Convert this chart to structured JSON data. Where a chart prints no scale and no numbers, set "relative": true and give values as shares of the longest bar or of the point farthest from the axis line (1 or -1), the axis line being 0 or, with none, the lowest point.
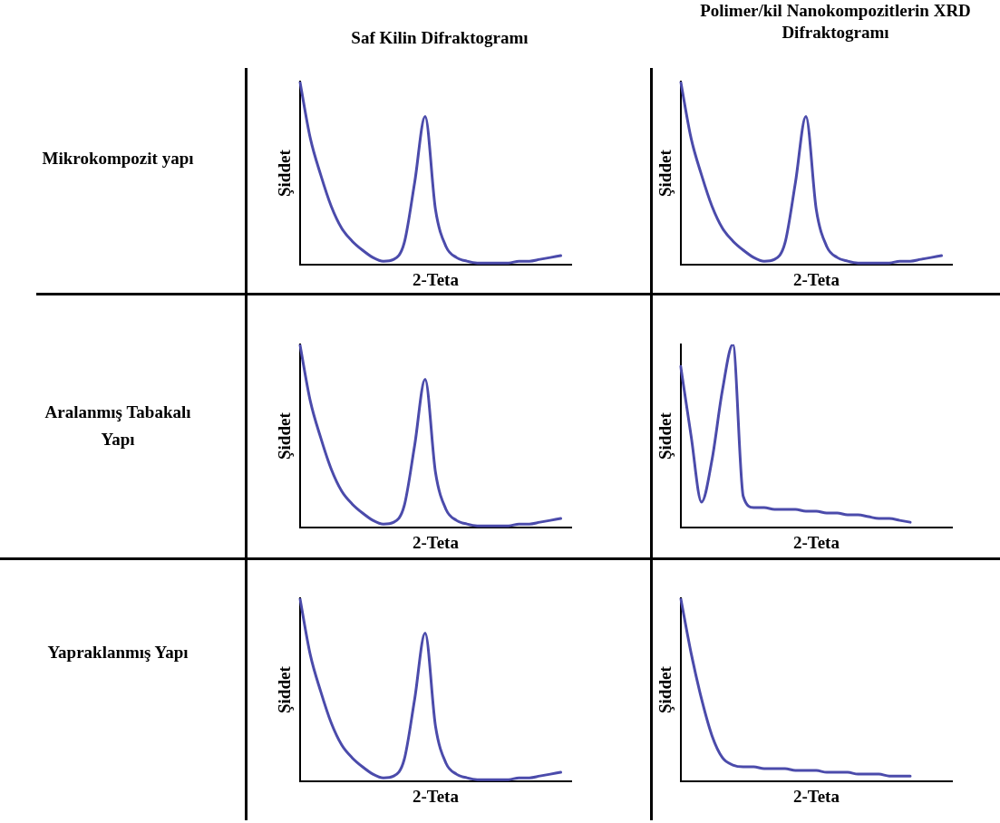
{
  "chart_data": [
    {
      "type": "line",
      "title": "Saf Kilin Difraktogramı",
      "annotations": [
        "Mikrokompozit yapı"
      ],
      "xlabel": "2-Teta",
      "ylabel": "Şiddet",
      "relative": true,
      "tick_labels": false,
      "legend": false,
      "categories": [
        null,
        null,
        null,
        null,
        null,
        null,
        null,
        null,
        null,
        null,
        null,
        null,
        null,
        null,
        null,
        null,
        null,
        null,
        null,
        null,
        null,
        null,
        null,
        null,
        null,
        null,
        null
      ],
      "series": [
        {
          "color": "#4b4bab",
          "values": [
            1.0,
            0.69,
            0.49,
            0.32,
            0.2,
            0.13,
            0.08,
            0.04,
            0.02,
            0.03,
            0.12,
            0.45,
            0.81,
            0.3,
            0.1,
            0.04,
            0.02,
            0.01,
            0.01,
            0.01,
            0.01,
            0.02,
            0.02,
            0.03,
            0.04,
            0.05,
            null
          ]
        }
      ]
    },
    {
      "type": "line",
      "title": "Polimer/kil Nanokompozitlerin XRD Difraktogramı",
      "xlabel": "2-Teta",
      "ylabel": "Şiddet",
      "relative": true,
      "tick_labels": false,
      "legend": false,
      "categories": [
        null,
        null,
        null,
        null,
        null,
        null,
        null,
        null,
        null,
        null,
        null,
        null,
        null,
        null,
        null,
        null,
        null,
        null,
        null,
        null,
        null,
        null,
        null,
        null,
        null,
        null,
        null
      ],
      "series": [
        {
          "color": "#4b4bab",
          "values": [
            1.0,
            0.69,
            0.49,
            0.32,
            0.2,
            0.13,
            0.08,
            0.04,
            0.02,
            0.03,
            0.12,
            0.45,
            0.81,
            0.3,
            0.1,
            0.04,
            0.02,
            0.01,
            0.01,
            0.01,
            0.01,
            0.02,
            0.02,
            0.03,
            0.04,
            0.05,
            null
          ]
        }
      ]
    },
    {
      "type": "line",
      "annotations": [
        "Aralanmış Tabakalı Yapı"
      ],
      "xlabel": "2-Teta",
      "ylabel": "Şiddet",
      "relative": true,
      "tick_labels": false,
      "legend": false,
      "categories": [
        null,
        null,
        null,
        null,
        null,
        null,
        null,
        null,
        null,
        null,
        null,
        null,
        null,
        null,
        null,
        null,
        null,
        null,
        null,
        null,
        null,
        null,
        null,
        null,
        null,
        null,
        null
      ],
      "series": [
        {
          "color": "#4b4bab",
          "values": [
            1.0,
            0.69,
            0.49,
            0.32,
            0.2,
            0.13,
            0.08,
            0.04,
            0.02,
            0.03,
            0.12,
            0.45,
            0.81,
            0.3,
            0.1,
            0.04,
            0.02,
            0.01,
            0.01,
            0.01,
            0.01,
            0.02,
            0.02,
            0.03,
            0.04,
            0.05,
            null
          ]
        }
      ]
    },
    {
      "type": "line",
      "xlabel": "2-Teta",
      "ylabel": "Şiddet",
      "relative": true,
      "tick_labels": false,
      "legend": false,
      "categories": [
        null,
        null,
        null,
        null,
        null,
        null,
        null,
        null,
        null,
        null,
        null,
        null,
        null,
        null,
        null,
        null,
        null,
        null,
        null,
        null,
        null,
        null,
        null,
        null,
        null,
        null,
        null
      ],
      "series": [
        {
          "color": "#4b4bab",
          "values": [
            0.88,
            0.5,
            0.14,
            0.37,
            0.75,
            1.0,
            0.17,
            0.11,
            0.11,
            0.1,
            0.1,
            0.1,
            0.09,
            0.09,
            0.08,
            0.08,
            0.07,
            0.07,
            0.06,
            0.05,
            0.05,
            0.04,
            0.03,
            null,
            null,
            null,
            null
          ]
        }
      ]
    },
    {
      "type": "line",
      "annotations": [
        "Yapraklanmış Yapı"
      ],
      "xlabel": "2-Teta",
      "ylabel": "Şiddet",
      "relative": true,
      "tick_labels": false,
      "legend": false,
      "categories": [
        null,
        null,
        null,
        null,
        null,
        null,
        null,
        null,
        null,
        null,
        null,
        null,
        null,
        null,
        null,
        null,
        null,
        null,
        null,
        null,
        null,
        null,
        null,
        null,
        null,
        null,
        null
      ],
      "series": [
        {
          "color": "#4b4bab",
          "values": [
            1.0,
            0.69,
            0.49,
            0.32,
            0.2,
            0.13,
            0.08,
            0.04,
            0.02,
            0.03,
            0.12,
            0.45,
            0.81,
            0.3,
            0.1,
            0.04,
            0.02,
            0.01,
            0.01,
            0.01,
            0.01,
            0.02,
            0.02,
            0.03,
            0.04,
            0.05,
            null
          ]
        }
      ]
    },
    {
      "type": "line",
      "xlabel": "2-Teta",
      "ylabel": "Şiddet",
      "relative": true,
      "tick_labels": false,
      "legend": false,
      "categories": [
        null,
        null,
        null,
        null,
        null,
        null,
        null,
        null,
        null,
        null,
        null,
        null,
        null,
        null,
        null,
        null,
        null,
        null,
        null,
        null,
        null,
        null,
        null,
        null,
        null,
        null,
        null
      ],
      "series": [
        {
          "color": "#4b4bab",
          "values": [
            1.0,
            0.7,
            0.45,
            0.25,
            0.13,
            0.09,
            0.08,
            0.08,
            0.07,
            0.07,
            0.07,
            0.06,
            0.06,
            0.06,
            0.05,
            0.05,
            0.05,
            0.04,
            0.04,
            0.04,
            0.03,
            0.03,
            0.03,
            null,
            null,
            null,
            null
          ]
        }
      ]
    }
  ]
}
